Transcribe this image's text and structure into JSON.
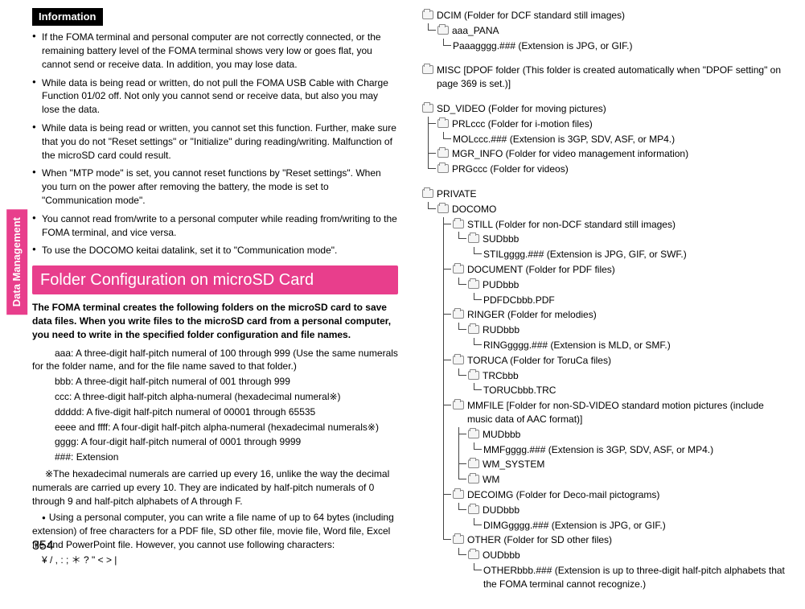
{
  "sideTab": "Data Management",
  "pageNumber": "354",
  "info": {
    "header": "Information",
    "items": [
      "If the FOMA terminal and personal computer are not correctly connected, or the remaining battery level of the FOMA terminal shows very low or goes flat, you cannot send or receive data. In addition, you may lose data.",
      "While data is being read or written, do not pull the FOMA USB Cable with Charge Function 01/02 off. Not only you cannot send or receive data, but also you may lose the data.",
      "While data is being read or written, you cannot set this function. Further, make sure that you do not \"Reset settings\" or \"Initialize\" during reading/writing. Malfunction of the microSD card could result.",
      "When \"MTP mode\" is set, you cannot reset functions by \"Reset settings\". When you turn on the power after removing the battery, the mode is set to \"Communication mode\".",
      "You cannot read from/write to a personal computer while reading from/writing to the FOMA terminal, and vice versa.",
      "To use the DOCOMO keitai datalink, set it to \"Communication mode\"."
    ]
  },
  "section": {
    "header": "Folder Configuration on microSD Card",
    "intro": "The FOMA terminal creates the following folders on the microSD card to save data files. When you write files to the microSD card from a personal computer, you need to write in the specified folder configuration and file names.",
    "defs": [
      "aaa: A three-digit half-pitch numeral of 100 through 999 (Use the same numerals for the folder name, and for the file name saved to that folder.)",
      "bbb: A three-digit half-pitch numeral of 001 through 999",
      "ccc: A three-digit half-pitch alpha-numeral (hexadecimal numeral※)",
      "ddddd: A five-digit half-pitch numeral of 00001 through 65535",
      "eeee and ffff: A four-digit half-pitch alpha-numeral (hexadecimal numerals※)",
      "gggg: A four-digit half-pitch numeral of 0001 through 9999",
      "###: Extension"
    ],
    "note": "※The hexadecimal numerals are carried up every 16, unlike the way the decimal numerals are carried up every 10. They are indicated by half-pitch numerals of 0 through 9 and half-pitch alphabets of A through F.",
    "bullet": "Using a personal computer, you can write a file name of up to 64 bytes (including extension) of free characters for a PDF file, SD other file, movie file, Word file, Excel file and PowerPoint file. However, you cannot use following characters:",
    "chars": "¥ / , : ; ＊ ? \"  < > |"
  },
  "tree": [
    {
      "label": "DCIM (Folder for DCF standard still images)",
      "children": [
        {
          "label": "aaa_PANA",
          "children": [
            {
              "leaf": "Paaagggg.### (Extension is JPG, or GIF.)"
            }
          ]
        }
      ]
    },
    {
      "label": "MISC [DPOF folder (This folder is created automatically when \"DPOF setting\" on page 369 is set.)]"
    },
    {
      "label": "SD_VIDEO (Folder for moving pictures)",
      "children": [
        {
          "label": "PRLccc (Folder for i-motion files)",
          "children": [
            {
              "leaf": "MOLccc.### (Extension is 3GP, SDV, ASF, or MP4.)"
            }
          ]
        },
        {
          "label": "MGR_INFO (Folder for video management information)"
        },
        {
          "label": "PRGccc (Folder for videos)"
        }
      ]
    },
    {
      "label": "PRIVATE",
      "children": [
        {
          "label": "DOCOMO",
          "children": [
            {
              "label": "STILL (Folder for non-DCF standard still images)",
              "children": [
                {
                  "label": "SUDbbb",
                  "children": [
                    {
                      "leaf": "STILgggg.### (Extension is JPG, GIF, or SWF.)"
                    }
                  ]
                }
              ]
            },
            {
              "label": "DOCUMENT (Folder for PDF files)",
              "children": [
                {
                  "label": "PUDbbb",
                  "children": [
                    {
                      "leaf": "PDFDCbbb.PDF"
                    }
                  ]
                }
              ]
            },
            {
              "label": "RINGER (Folder for melodies)",
              "children": [
                {
                  "label": "RUDbbb",
                  "children": [
                    {
                      "leaf": "RINGgggg.### (Extension is MLD, or SMF.)"
                    }
                  ]
                }
              ]
            },
            {
              "label": "TORUCA (Folder for ToruCa files)",
              "children": [
                {
                  "label": "TRCbbb",
                  "children": [
                    {
                      "leaf": "TORUCbbb.TRC"
                    }
                  ]
                }
              ]
            },
            {
              "label": "MMFILE [Folder for non-SD-VIDEO standard motion pictures (include music data of AAC format)]",
              "children": [
                {
                  "label": "MUDbbb",
                  "children": [
                    {
                      "leaf": "MMFgggg.### (Extension is 3GP, SDV, ASF, or MP4.)"
                    }
                  ]
                },
                {
                  "label": "WM_SYSTEM"
                },
                {
                  "label": "WM"
                }
              ]
            },
            {
              "label": "DECOIMG (Folder for Deco-mail pictograms)",
              "children": [
                {
                  "label": "DUDbbb",
                  "children": [
                    {
                      "leaf": "DIMGgggg.### (Extension is JPG, or GIF.)"
                    }
                  ]
                }
              ]
            },
            {
              "label": "OTHER (Folder for SD other files)",
              "children": [
                {
                  "label": "OUDbbb",
                  "children": [
                    {
                      "leaf": "OTHERbbb.### (Extension is up to three-digit half-pitch alphabets that the FOMA terminal cannot recognize.)"
                    }
                  ]
                }
              ]
            }
          ]
        }
      ]
    }
  ]
}
